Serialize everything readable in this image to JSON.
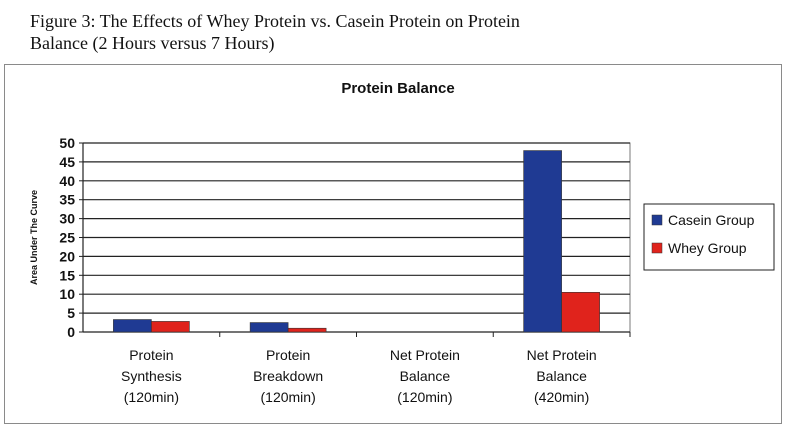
{
  "caption": {
    "line1": "Figure 3: The Effects of Whey Protein vs. Casein Protein on Protein",
    "line2": "Balance (2 Hours versus 7 Hours)"
  },
  "chart_data": {
    "type": "bar",
    "title": "Protein Balance",
    "xlabel": "",
    "ylabel": "Area Under The Curve",
    "ylim": [
      0,
      50
    ],
    "yticks": [
      0,
      5,
      10,
      15,
      20,
      25,
      30,
      35,
      40,
      45,
      50
    ],
    "grid": true,
    "legend_position": "right",
    "categories": [
      [
        "Protein",
        "Synthesis",
        "(120min)"
      ],
      [
        "Protein",
        "Breakdown",
        "(120min)"
      ],
      [
        "Net Protein",
        "Balance",
        "(120min)"
      ],
      [
        "Net Protein",
        "Balance",
        "(420min)"
      ]
    ],
    "series": [
      {
        "name": "Casein Group",
        "color": "#1f3a93",
        "values": [
          3.3,
          2.5,
          0,
          48
        ]
      },
      {
        "name": "Whey Group",
        "color": "#e0231c",
        "values": [
          2.8,
          1.0,
          0,
          10.5
        ]
      }
    ]
  }
}
